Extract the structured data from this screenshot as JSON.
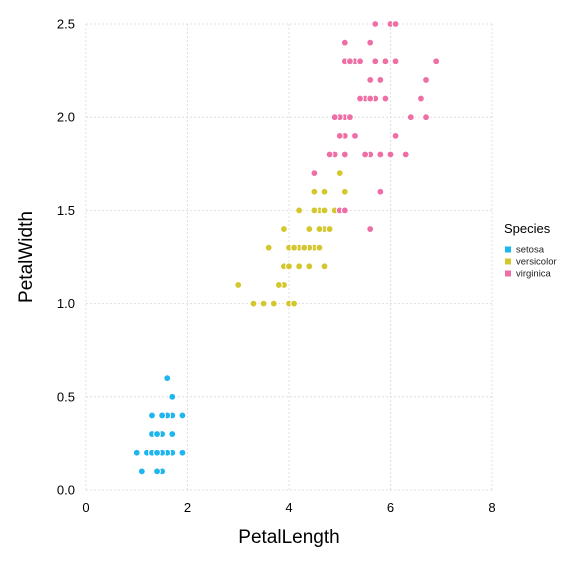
{
  "chart_data": {
    "type": "scatter",
    "title": "",
    "xlabel": "PetalLength",
    "ylabel": "PetalWidth",
    "xlim": [
      0,
      8
    ],
    "ylim": [
      0,
      2.5
    ],
    "xticks": [
      0,
      2,
      4,
      6,
      8
    ],
    "yticks": [
      0.0,
      0.5,
      1.0,
      1.5,
      2.0,
      2.5
    ],
    "xtick_labels": [
      "0",
      "2",
      "4",
      "6",
      "8"
    ],
    "ytick_labels": [
      "0.0",
      "0.5",
      "1.0",
      "1.5",
      "2.0",
      "2.5"
    ],
    "grid": true,
    "legend": {
      "title": "Species",
      "position": "right"
    },
    "series": [
      {
        "name": "setosa",
        "color": "#1EB6EF",
        "points": [
          [
            1.4,
            0.2
          ],
          [
            1.4,
            0.2
          ],
          [
            1.3,
            0.2
          ],
          [
            1.5,
            0.2
          ],
          [
            1.4,
            0.2
          ],
          [
            1.7,
            0.4
          ],
          [
            1.4,
            0.3
          ],
          [
            1.5,
            0.2
          ],
          [
            1.4,
            0.2
          ],
          [
            1.5,
            0.1
          ],
          [
            1.5,
            0.2
          ],
          [
            1.6,
            0.2
          ],
          [
            1.4,
            0.1
          ],
          [
            1.1,
            0.1
          ],
          [
            1.2,
            0.2
          ],
          [
            1.5,
            0.4
          ],
          [
            1.3,
            0.4
          ],
          [
            1.4,
            0.3
          ],
          [
            1.7,
            0.3
          ],
          [
            1.5,
            0.3
          ],
          [
            1.7,
            0.2
          ],
          [
            1.5,
            0.4
          ],
          [
            1.0,
            0.2
          ],
          [
            1.7,
            0.5
          ],
          [
            1.9,
            0.2
          ],
          [
            1.6,
            0.2
          ],
          [
            1.6,
            0.4
          ],
          [
            1.5,
            0.2
          ],
          [
            1.4,
            0.2
          ],
          [
            1.6,
            0.2
          ],
          [
            1.6,
            0.2
          ],
          [
            1.5,
            0.4
          ],
          [
            1.5,
            0.1
          ],
          [
            1.4,
            0.2
          ],
          [
            1.5,
            0.2
          ],
          [
            1.2,
            0.2
          ],
          [
            1.3,
            0.2
          ],
          [
            1.4,
            0.1
          ],
          [
            1.3,
            0.2
          ],
          [
            1.5,
            0.2
          ],
          [
            1.3,
            0.3
          ],
          [
            1.3,
            0.3
          ],
          [
            1.3,
            0.2
          ],
          [
            1.6,
            0.6
          ],
          [
            1.9,
            0.4
          ],
          [
            1.4,
            0.3
          ],
          [
            1.6,
            0.2
          ],
          [
            1.4,
            0.2
          ],
          [
            1.5,
            0.2
          ],
          [
            1.4,
            0.2
          ]
        ]
      },
      {
        "name": "versicolor",
        "color": "#D4C72E",
        "points": [
          [
            4.7,
            1.4
          ],
          [
            4.5,
            1.5
          ],
          [
            4.9,
            1.5
          ],
          [
            4.0,
            1.3
          ],
          [
            4.6,
            1.5
          ],
          [
            4.5,
            1.3
          ],
          [
            4.7,
            1.6
          ],
          [
            3.3,
            1.0
          ],
          [
            4.6,
            1.3
          ],
          [
            3.9,
            1.4
          ],
          [
            3.5,
            1.0
          ],
          [
            4.2,
            1.5
          ],
          [
            4.0,
            1.0
          ],
          [
            4.7,
            1.4
          ],
          [
            3.6,
            1.3
          ],
          [
            4.4,
            1.4
          ],
          [
            4.5,
            1.5
          ],
          [
            4.1,
            1.0
          ],
          [
            4.5,
            1.5
          ],
          [
            3.9,
            1.1
          ],
          [
            4.8,
            1.8
          ],
          [
            4.0,
            1.3
          ],
          [
            4.9,
            1.5
          ],
          [
            4.7,
            1.2
          ],
          [
            4.3,
            1.3
          ],
          [
            4.4,
            1.4
          ],
          [
            4.8,
            1.4
          ],
          [
            5.0,
            1.7
          ],
          [
            4.5,
            1.5
          ],
          [
            3.5,
            1.0
          ],
          [
            3.8,
            1.1
          ],
          [
            3.7,
            1.0
          ],
          [
            3.9,
            1.2
          ],
          [
            5.1,
            1.6
          ],
          [
            4.5,
            1.5
          ],
          [
            4.5,
            1.6
          ],
          [
            4.7,
            1.5
          ],
          [
            4.4,
            1.3
          ],
          [
            4.1,
            1.3
          ],
          [
            4.0,
            1.3
          ],
          [
            4.4,
            1.2
          ],
          [
            4.6,
            1.4
          ],
          [
            4.0,
            1.2
          ],
          [
            3.3,
            1.0
          ],
          [
            4.2,
            1.3
          ],
          [
            4.2,
            1.2
          ],
          [
            4.2,
            1.3
          ],
          [
            4.3,
            1.3
          ],
          [
            3.0,
            1.1
          ],
          [
            4.1,
            1.3
          ]
        ]
      },
      {
        "name": "virginica",
        "color": "#EE6FA5",
        "points": [
          [
            6.0,
            2.5
          ],
          [
            5.1,
            1.9
          ],
          [
            5.9,
            2.1
          ],
          [
            5.6,
            1.8
          ],
          [
            5.8,
            2.2
          ],
          [
            6.6,
            2.1
          ],
          [
            4.5,
            1.7
          ],
          [
            6.3,
            1.8
          ],
          [
            5.8,
            1.8
          ],
          [
            6.1,
            2.5
          ],
          [
            5.1,
            2.0
          ],
          [
            5.3,
            1.9
          ],
          [
            5.5,
            2.1
          ],
          [
            5.0,
            2.0
          ],
          [
            5.1,
            2.4
          ],
          [
            5.3,
            2.3
          ],
          [
            5.5,
            1.8
          ],
          [
            6.7,
            2.2
          ],
          [
            6.9,
            2.3
          ],
          [
            5.0,
            1.5
          ],
          [
            5.7,
            2.3
          ],
          [
            4.9,
            2.0
          ],
          [
            6.7,
            2.0
          ],
          [
            4.9,
            1.8
          ],
          [
            5.7,
            2.1
          ],
          [
            6.0,
            1.8
          ],
          [
            4.8,
            1.8
          ],
          [
            4.9,
            1.8
          ],
          [
            5.6,
            2.1
          ],
          [
            5.8,
            1.6
          ],
          [
            6.1,
            1.9
          ],
          [
            6.4,
            2.0
          ],
          [
            5.6,
            2.2
          ],
          [
            5.1,
            1.5
          ],
          [
            5.6,
            1.4
          ],
          [
            6.1,
            2.3
          ],
          [
            5.6,
            2.4
          ],
          [
            5.5,
            1.8
          ],
          [
            4.8,
            1.8
          ],
          [
            5.4,
            2.1
          ],
          [
            5.6,
            2.4
          ],
          [
            5.1,
            2.3
          ],
          [
            5.1,
            1.9
          ],
          [
            5.9,
            2.3
          ],
          [
            5.7,
            2.5
          ],
          [
            5.2,
            2.3
          ],
          [
            5.0,
            1.9
          ],
          [
            5.2,
            2.0
          ],
          [
            5.4,
            2.3
          ],
          [
            5.1,
            1.8
          ]
        ]
      }
    ]
  }
}
